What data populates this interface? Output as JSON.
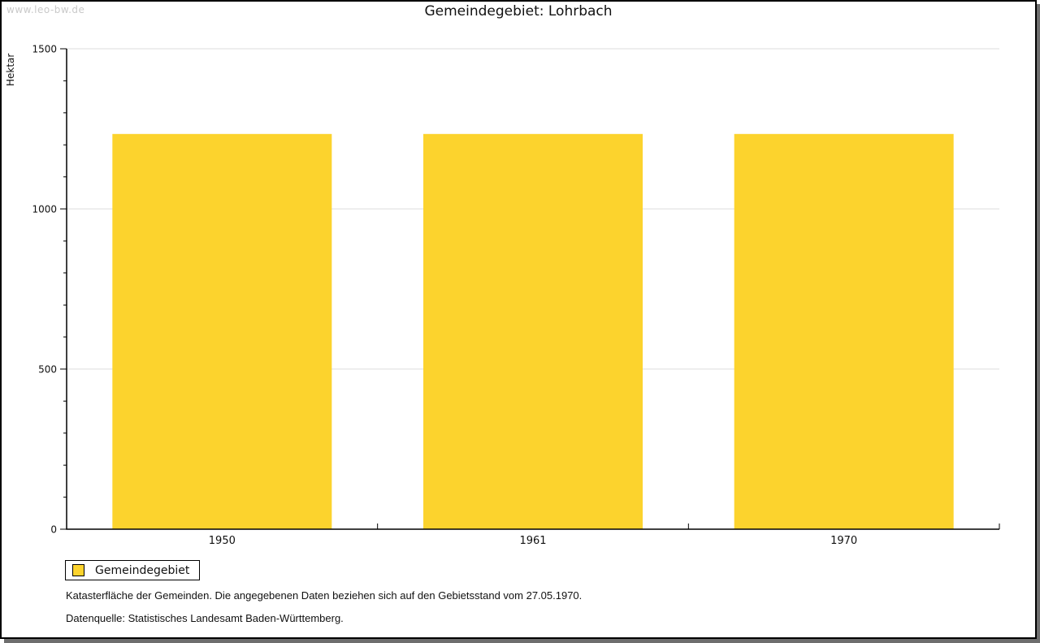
{
  "watermark": "www.leo-bw.de",
  "title": "Gemeindegebiet: Lohrbach",
  "chart_data": {
    "type": "bar",
    "title": "Gemeindegebiet: Lohrbach",
    "xlabel": "",
    "ylabel": "Hektar",
    "categories": [
      "1950",
      "1961",
      "1970"
    ],
    "series": [
      {
        "name": "Gemeindegebiet",
        "color": "#FCD32D",
        "values": [
          1234,
          1234,
          1234
        ]
      }
    ],
    "ylim": [
      0,
      1500
    ],
    "yticks": [
      0,
      500,
      1000,
      1500
    ],
    "minor_tick_step": 100,
    "grid": true,
    "gridline_color": "#dddddd",
    "legend_position": "bottom-left"
  },
  "legend": {
    "items": [
      {
        "label": "Gemeindegebiet",
        "color": "#FCD32D"
      }
    ]
  },
  "footnotes": [
    "Katasterfläche der Gemeinden. Die angegebenen Daten beziehen sich auf den Gebietsstand vom 27.05.1970.",
    "Datenquelle: Statistisches Landesamt Baden-Württemberg."
  ],
  "colors": {
    "bar": "#FCD32D",
    "gridline": "#dddddd",
    "axis": "#000000",
    "watermark": "#c9c9c9",
    "frame_shadow": "#6e6e6e",
    "background": "#ffffff"
  }
}
